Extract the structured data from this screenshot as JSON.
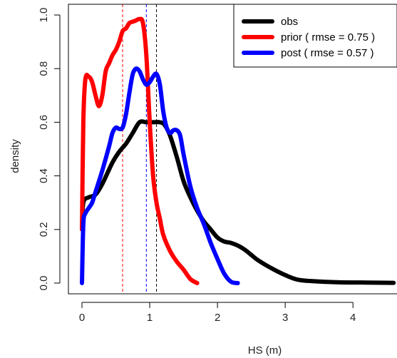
{
  "chart_data": {
    "type": "line",
    "xlabel": "HS (m)",
    "ylabel": "density",
    "xlim": [
      -0.2,
      4.65
    ],
    "ylim": [
      -0.04,
      1.04
    ],
    "x_ticks": [
      0,
      1,
      2,
      3,
      4
    ],
    "x_tick_labels": [
      "0",
      "1",
      "2",
      "3",
      "4"
    ],
    "y_ticks": [
      0.0,
      0.2,
      0.4,
      0.6,
      0.8,
      1.0
    ],
    "y_tick_labels": [
      "0.0",
      "0.2",
      "0.4",
      "0.6",
      "0.8",
      "1.0"
    ],
    "legend_position": "top-right",
    "legend": [
      {
        "label": "obs",
        "color": "#000000"
      },
      {
        "label": "prior ( rmse =  0.75 )",
        "color": "#ff0000"
      },
      {
        "label": "post ( rmse =  0.57 )",
        "color": "#0000ff"
      }
    ],
    "series": [
      {
        "color": "#000000",
        "x": [
          0,
          0.02,
          0.1,
          0.2,
          0.3,
          0.45,
          0.55,
          0.65,
          0.75,
          0.85,
          0.95,
          1.05,
          1.15,
          1.22,
          1.3,
          1.4,
          1.5,
          1.6,
          1.7,
          1.8,
          1.9,
          2.0,
          2.1,
          2.2,
          2.3,
          2.4,
          2.5,
          2.6,
          2.8,
          3.0,
          3.2,
          3.5,
          3.8,
          4.2,
          4.6
        ],
        "y": [
          0.2,
          0.3,
          0.32,
          0.33,
          0.37,
          0.45,
          0.49,
          0.52,
          0.56,
          0.6,
          0.6,
          0.6,
          0.6,
          0.59,
          0.55,
          0.47,
          0.38,
          0.32,
          0.27,
          0.23,
          0.2,
          0.17,
          0.155,
          0.15,
          0.14,
          0.125,
          0.105,
          0.085,
          0.055,
          0.03,
          0.012,
          0.006,
          0.003,
          0.002,
          0.001
        ]
      },
      {
        "color": "#ff0000",
        "x": [
          0,
          0.02,
          0.05,
          0.1,
          0.15,
          0.2,
          0.25,
          0.3,
          0.35,
          0.4,
          0.45,
          0.5,
          0.55,
          0.6,
          0.65,
          0.7,
          0.75,
          0.8,
          0.85,
          0.9,
          0.95,
          1.0,
          1.05,
          1.1,
          1.15,
          1.2,
          1.3,
          1.4,
          1.5,
          1.6,
          1.7
        ],
        "y": [
          0.2,
          0.6,
          0.76,
          0.77,
          0.75,
          0.7,
          0.66,
          0.7,
          0.79,
          0.82,
          0.85,
          0.87,
          0.9,
          0.94,
          0.95,
          0.97,
          0.975,
          0.98,
          0.985,
          0.97,
          0.85,
          0.6,
          0.4,
          0.3,
          0.24,
          0.18,
          0.12,
          0.08,
          0.05,
          0.015,
          0.0
        ]
      },
      {
        "color": "#0000ff",
        "x": [
          0,
          0.02,
          0.05,
          0.1,
          0.15,
          0.2,
          0.3,
          0.4,
          0.45,
          0.5,
          0.55,
          0.6,
          0.65,
          0.7,
          0.75,
          0.8,
          0.85,
          0.9,
          0.95,
          1.0,
          1.05,
          1.1,
          1.15,
          1.2,
          1.25,
          1.3,
          1.35,
          1.4,
          1.45,
          1.5,
          1.6,
          1.7,
          1.8,
          1.9,
          2.0,
          2.1,
          2.2,
          2.3
        ],
        "y": [
          0.0,
          0.22,
          0.26,
          0.28,
          0.3,
          0.34,
          0.42,
          0.51,
          0.56,
          0.58,
          0.575,
          0.58,
          0.63,
          0.71,
          0.78,
          0.8,
          0.79,
          0.76,
          0.74,
          0.75,
          0.77,
          0.78,
          0.74,
          0.64,
          0.58,
          0.56,
          0.57,
          0.57,
          0.55,
          0.48,
          0.36,
          0.28,
          0.22,
          0.15,
          0.09,
          0.035,
          0.005,
          0.0
        ]
      }
    ],
    "vlines": [
      {
        "x": 0.6,
        "color": "#ff0000"
      },
      {
        "x": 0.95,
        "color": "#0000ff"
      },
      {
        "x": 1.1,
        "color": "#000000"
      }
    ]
  }
}
